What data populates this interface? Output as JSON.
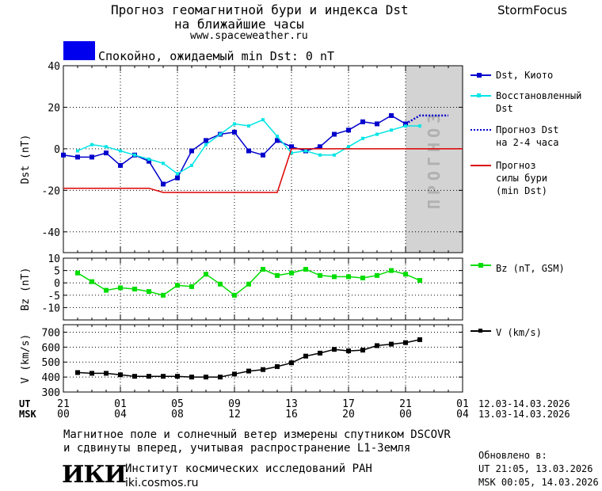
{
  "header": {
    "title_line1": "Прогноз геомагнитной бури и индекса Dst",
    "title_line2": "на ближайшие часы",
    "url": "www.spaceweather.ru",
    "brand": "StormFocus",
    "status_text": "Спокойно, ожидаемый min Dst: 0 nT",
    "status_color": "#0000ee"
  },
  "axes": {
    "ut_label": "UT",
    "msk_label": "MSK",
    "ut_ticks": [
      "21",
      "01",
      "05",
      "09",
      "13",
      "17",
      "21",
      "01"
    ],
    "msk_ticks": [
      "00",
      "04",
      "08",
      "12",
      "16",
      "20",
      "00",
      "04"
    ],
    "ut_range": "12.03-14.03.2026",
    "msk_range": "13.03-14.03.2026"
  },
  "footer": {
    "note_line1": "Магнитное поле и солнечный ветер измерены спутником DSCOVR",
    "note_line2": "и сдвинуты вперед, учитывая распространение L1-Земля",
    "institute_logo": "ИКИ",
    "institute_name": "Институт космических исследований РАН",
    "institute_url": "iki.cosmos.ru",
    "updated_label": "Обновлено в:",
    "updated_ut": "UT  21:05, 13.03.2026",
    "updated_msk": "MSK 00:05, 14.03.2026"
  },
  "chart_data": [
    {
      "type": "line",
      "ylabel": "Dst (nT)",
      "ylim": [
        -50,
        40
      ],
      "yticks": [
        40,
        20,
        0,
        -20,
        -40
      ],
      "forecast_label": "ПРОГНОЗ",
      "forecast_shade_color": "#d3d3d3",
      "x_hours_since_21UT": [
        0,
        1,
        2,
        3,
        4,
        5,
        6,
        7,
        8,
        9,
        10,
        11,
        12,
        13,
        14,
        15,
        16,
        17,
        18,
        19,
        20,
        21,
        22,
        23,
        24
      ],
      "series": [
        {
          "name": "Dst, Киото",
          "color": "#0000cc",
          "x": [
            0,
            1,
            2,
            3,
            4,
            5,
            6,
            7,
            8,
            9,
            10,
            11,
            12,
            13,
            14,
            15,
            16,
            17,
            18,
            19,
            20,
            21,
            22,
            23,
            24
          ],
          "values": [
            -3,
            -4,
            -4,
            -2,
            -8,
            -3,
            -6,
            -17,
            -14,
            -1,
            4,
            7,
            8,
            -1,
            -3,
            4,
            1,
            -1,
            1,
            7,
            9,
            13,
            12,
            16,
            12
          ]
        },
        {
          "name": "Восстановленный Dst",
          "color": "#00e5e5",
          "x": [
            1,
            2,
            3,
            4,
            5,
            6,
            7,
            8,
            9,
            10,
            11,
            12,
            13,
            14,
            15,
            16,
            17,
            18,
            19,
            20,
            21,
            22,
            23,
            24,
            25
          ],
          "values": [
            -1,
            2,
            1,
            -1,
            -3,
            -5,
            -7,
            -12,
            -8,
            2,
            7,
            12,
            11,
            14,
            6,
            -2,
            -1,
            -3,
            -3,
            1,
            5,
            7,
            9,
            11,
            11
          ]
        },
        {
          "name": "Прогноз Dst на 2-4 часа",
          "color": "#0000cc",
          "style": "dotted",
          "x": [
            24,
            25,
            26,
            27
          ],
          "values": [
            12,
            16,
            16,
            16
          ]
        },
        {
          "name": "Прогноз силы бури (min Dst)",
          "color": "#dd0000",
          "x": [
            0,
            6,
            7,
            15,
            16,
            28
          ],
          "values": [
            -19,
            -19,
            -21,
            -21,
            0,
            0
          ]
        }
      ]
    },
    {
      "type": "line",
      "ylabel": "Bz (nT)",
      "ylim": [
        -15,
        10
      ],
      "yticks": [
        10,
        5,
        0,
        -5,
        -10
      ],
      "series": [
        {
          "name": "Bz (nT, GSM)",
          "color": "#00dd00",
          "x": [
            1,
            2,
            3,
            4,
            5,
            6,
            7,
            8,
            9,
            10,
            11,
            12,
            13,
            14,
            15,
            16,
            17,
            18,
            19,
            20,
            21,
            22,
            23,
            24,
            25
          ],
          "values": [
            4,
            0.5,
            -3,
            -2,
            -2.5,
            -3.5,
            -5,
            -1,
            -1.5,
            3.5,
            -0.5,
            -5,
            -0.5,
            5.5,
            3,
            4,
            5.5,
            3,
            2.5,
            2.5,
            2,
            3,
            5,
            3.5,
            1
          ]
        }
      ]
    },
    {
      "type": "line",
      "ylabel": "V (km/s)",
      "ylim": [
        300,
        750
      ],
      "yticks": [
        700,
        600,
        500,
        400,
        300
      ],
      "series": [
        {
          "name": "V (km/s)",
          "color": "#000000",
          "x": [
            1,
            2,
            3,
            4,
            5,
            6,
            7,
            8,
            9,
            10,
            11,
            12,
            13,
            14,
            15,
            16,
            17,
            18,
            19,
            20,
            21,
            22,
            23,
            24,
            25
          ],
          "values": [
            430,
            425,
            425,
            415,
            405,
            405,
            405,
            405,
            400,
            400,
            400,
            420,
            440,
            450,
            470,
            495,
            540,
            560,
            585,
            575,
            580,
            610,
            620,
            630,
            650
          ]
        }
      ]
    }
  ],
  "legend": {
    "dst_kyoto": "Dst, Киото",
    "dst_restored_1": "Восстановленный",
    "dst_restored_2": "Dst",
    "forecast_dst_1": "Прогноз Dst",
    "forecast_dst_2": "на 2-4 часа",
    "storm_1": "Прогноз",
    "storm_2": "силы бури",
    "storm_3": "(min Dst)",
    "bz": "Bz (nT, GSM)",
    "v": "V (km/s)"
  }
}
